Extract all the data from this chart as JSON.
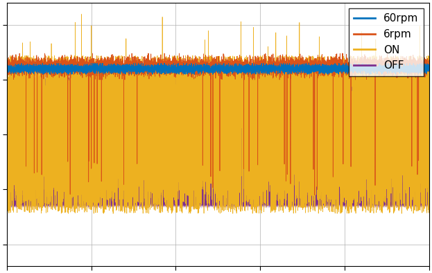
{
  "title": "",
  "xlabel": "",
  "ylabel": "",
  "legend_labels": [
    "60rpm",
    "6rpm",
    "ON",
    "OFF"
  ],
  "colors": [
    "#0072BD",
    "#D95319",
    "#EDB120",
    "#7E2F8E"
  ],
  "ylim": [
    -1.2,
    1.2
  ],
  "xlim": [
    0,
    1
  ],
  "grid": true,
  "background_color": "#ffffff",
  "legend_loc": "upper right",
  "figsize": [
    6.23,
    3.94
  ],
  "dpi": 100,
  "n_points": 8000
}
